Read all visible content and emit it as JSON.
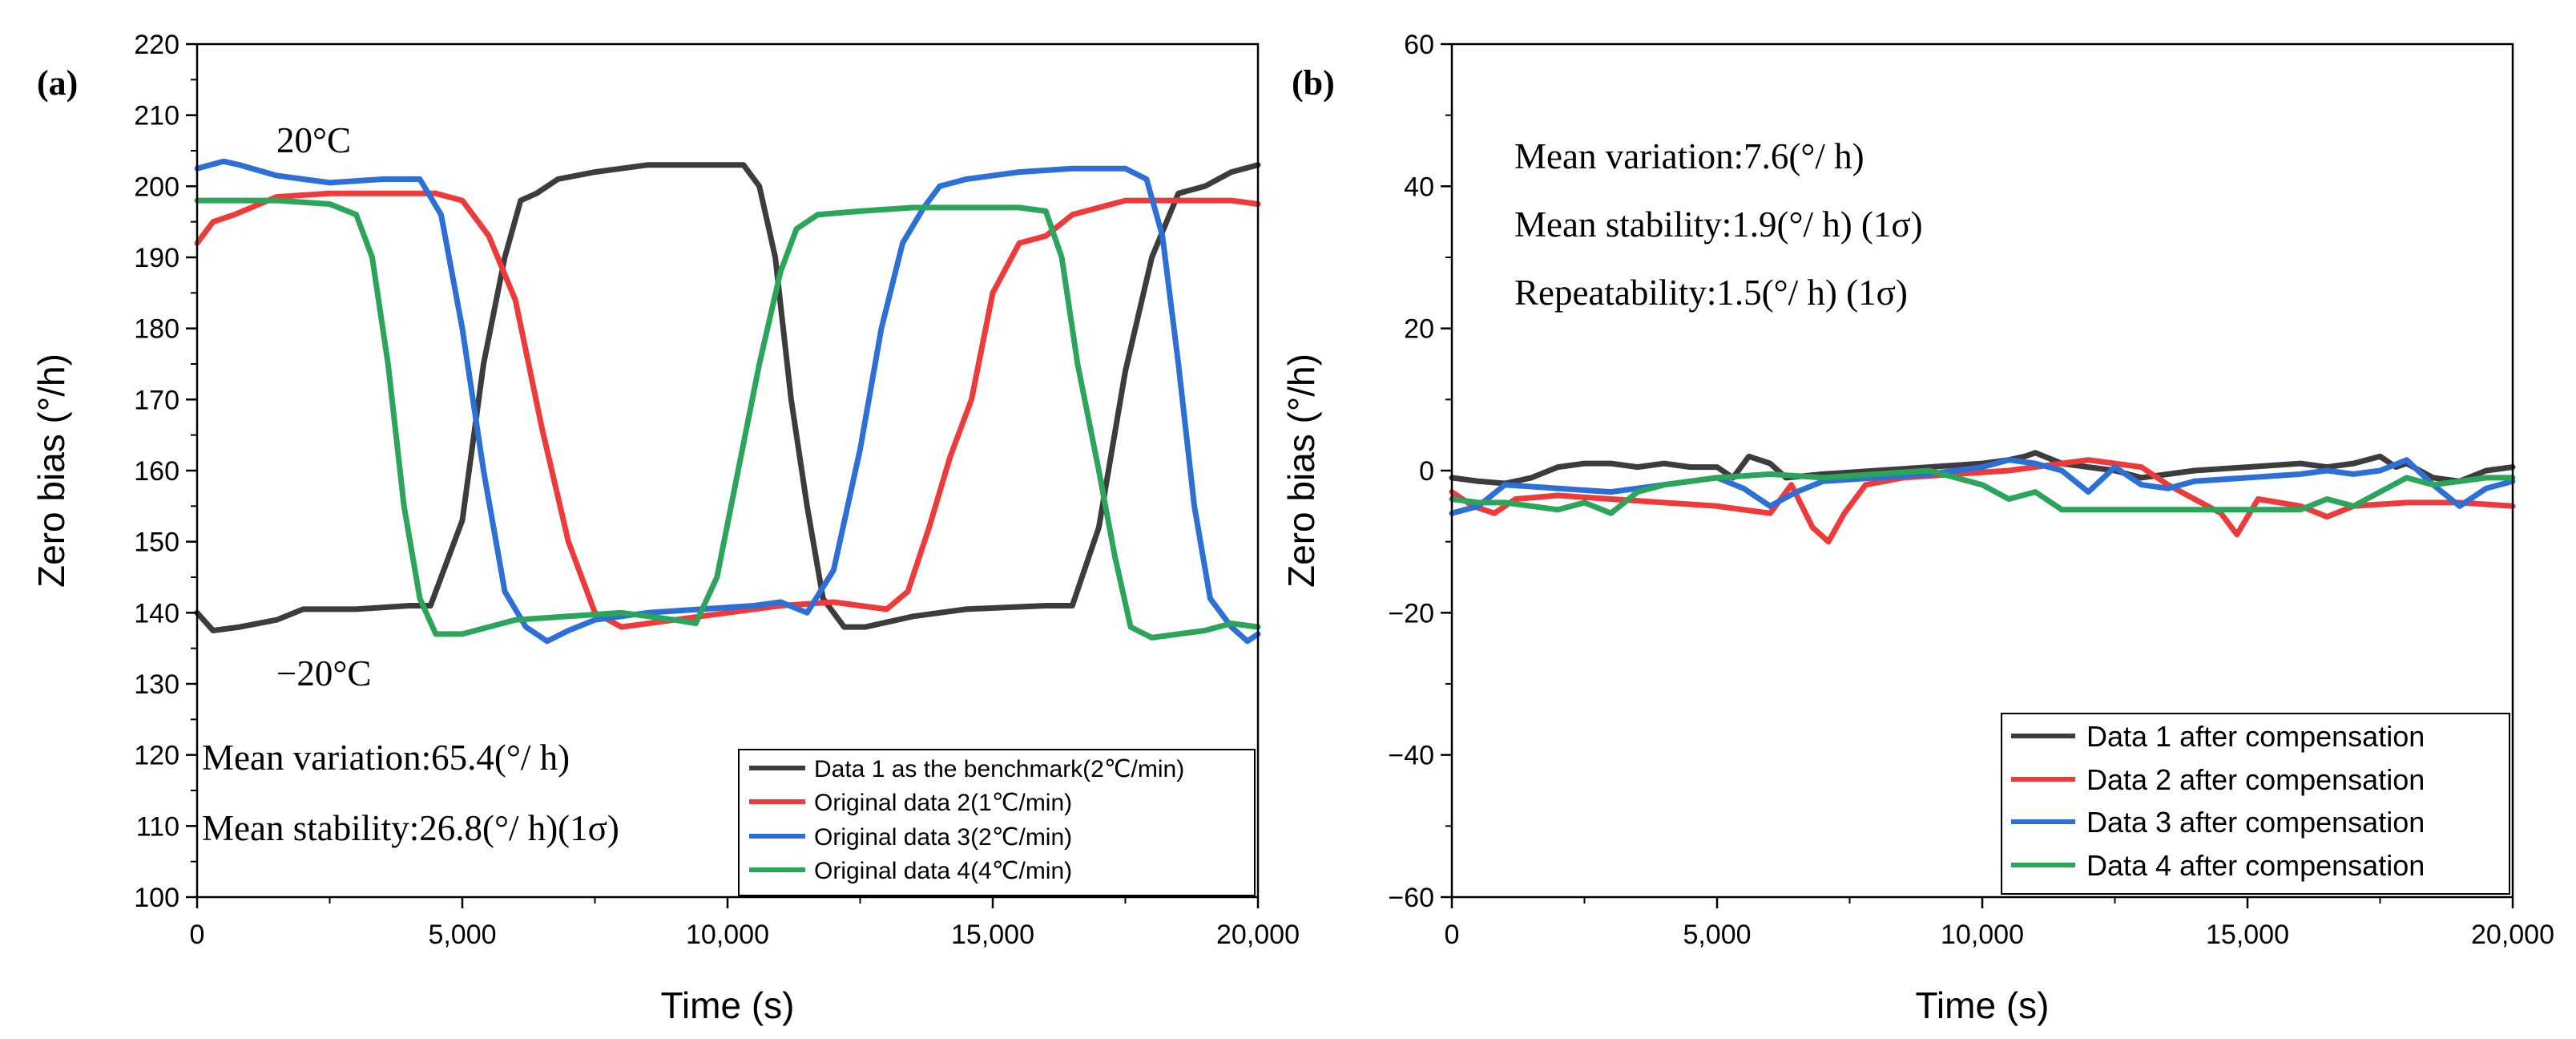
{
  "chart_data": [
    {
      "panel_label": "(a)",
      "type": "line",
      "xlabel": "Time (s)",
      "ylabel": "Zero bias (°/h)",
      "xlim": [
        0,
        20000
      ],
      "ylim": [
        100,
        220
      ],
      "x_ticks": [
        0,
        5000,
        10000,
        15000,
        20000
      ],
      "x_tick_labels": [
        "0",
        "5,000",
        "10,000",
        "15,000",
        "20,000"
      ],
      "y_ticks": [
        100,
        110,
        120,
        130,
        140,
        150,
        160,
        170,
        180,
        190,
        200,
        210,
        220
      ],
      "y_tick_labels": [
        "100",
        "110",
        "120",
        "130",
        "140",
        "150",
        "160",
        "170",
        "180",
        "190",
        "200",
        "210",
        "220"
      ],
      "annotations": [
        "20°C",
        "−20°C",
        "Mean variation:65.4(°/ h)",
        "Mean stability:26.8(°/ h)(1σ)"
      ],
      "legend_position": "bottom-right",
      "series": [
        {
          "name": "Data 1 as the benchmark(2℃/min)",
          "color": "#3c3c3c",
          "x": [
            0,
            300,
            800,
            1500,
            2000,
            3000,
            4000,
            4400,
            5000,
            5400,
            5800,
            6100,
            6400,
            6800,
            7500,
            8500,
            9500,
            10300,
            10600,
            10900,
            11200,
            11500,
            11800,
            12200,
            12600,
            13500,
            14500,
            16000,
            16500,
            17000,
            17500,
            18000,
            18500,
            19000,
            19500,
            20000
          ],
          "values": [
            140,
            137.5,
            138,
            139,
            140.5,
            140.5,
            141,
            141,
            153,
            175,
            190,
            198,
            199,
            201,
            202,
            203,
            203,
            203,
            200,
            190,
            170,
            155,
            142,
            138,
            138,
            139.5,
            140.5,
            141,
            141,
            152,
            174,
            190,
            199,
            200,
            202,
            203
          ]
        },
        {
          "name": "Original data 2(1℃/min)",
          "color": "#ee3a3a",
          "x": [
            0,
            300,
            700,
            1500,
            2500,
            3500,
            4500,
            5000,
            5500,
            6000,
            6500,
            7000,
            7500,
            8000,
            9000,
            10000,
            11000,
            12000,
            12500,
            13000,
            13400,
            13800,
            14200,
            14600,
            15000,
            15500,
            16000,
            16500,
            17500,
            18500,
            19500,
            20000
          ],
          "values": [
            192,
            195,
            196,
            198.5,
            199,
            199,
            199,
            198,
            193,
            184,
            166,
            150,
            140,
            138,
            139,
            140,
            141,
            141.5,
            141,
            140.5,
            143,
            152,
            162,
            170,
            185,
            192,
            193,
            196,
            198,
            198,
            198,
            197.5
          ]
        },
        {
          "name": "Original data 3(2℃/min)",
          "color": "#2c6fd7",
          "x": [
            0,
            500,
            800,
            1500,
            2500,
            3500,
            4200,
            4600,
            5000,
            5400,
            5800,
            6200,
            6600,
            7000,
            7500,
            8500,
            9500,
            10500,
            11000,
            11500,
            12000,
            12500,
            12900,
            13300,
            13700,
            14000,
            14500,
            15500,
            16500,
            17500,
            17900,
            18200,
            18500,
            18800,
            19100,
            19500,
            19800,
            20000
          ],
          "values": [
            202.5,
            203.5,
            203,
            201.5,
            200.5,
            201,
            201,
            196,
            180,
            160,
            143,
            138,
            136,
            137.5,
            139,
            140,
            140.5,
            141,
            141.5,
            140,
            146,
            163,
            180,
            192,
            197,
            200,
            201,
            202,
            202.5,
            202.5,
            201,
            193,
            175,
            155,
            142,
            138,
            136,
            137
          ]
        },
        {
          "name": "Original data 4(4℃/min)",
          "color": "#2aa55a",
          "x": [
            0,
            800,
            1500,
            2500,
            3000,
            3300,
            3600,
            3900,
            4200,
            4500,
            5000,
            6000,
            7000,
            8000,
            9000,
            9400,
            9800,
            10200,
            10600,
            11000,
            11300,
            11700,
            12500,
            13500,
            14500,
            15500,
            16000,
            16300,
            16600,
            17000,
            17300,
            17600,
            18000,
            18500,
            19000,
            19500,
            20000
          ],
          "values": [
            198,
            198,
            198,
            197.5,
            196,
            190,
            175,
            155,
            142,
            137,
            137,
            139,
            139.5,
            140,
            139,
            138.5,
            145,
            160,
            175,
            188,
            194,
            196,
            196.5,
            197,
            197,
            197,
            196.5,
            190,
            175,
            160,
            148,
            138,
            136.5,
            137,
            137.5,
            138.5,
            138
          ]
        }
      ]
    },
    {
      "panel_label": "(b)",
      "type": "line",
      "xlabel": "Time (s)",
      "ylabel": "Zero bias (°/h)",
      "xlim": [
        0,
        20000
      ],
      "ylim": [
        -60,
        60
      ],
      "x_ticks": [
        0,
        5000,
        10000,
        15000,
        20000
      ],
      "x_tick_labels": [
        "0",
        "5,000",
        "10,000",
        "15,000",
        "20,000"
      ],
      "y_ticks": [
        -60,
        -40,
        -20,
        0,
        20,
        40,
        60
      ],
      "y_tick_labels": [
        "−60",
        "−40",
        "−20",
        "0",
        "20",
        "40",
        "60"
      ],
      "annotations": [
        "Mean variation:7.6(°/ h)",
        "Mean stability:1.9(°/ h) (1σ)",
        "Repeatability:1.5(°/ h) (1σ)"
      ],
      "legend_position": "bottom-right",
      "series": [
        {
          "name": "Data 1 after compensation",
          "color": "#3c3c3c",
          "x": [
            0,
            500,
            1000,
            1500,
            2000,
            2500,
            3000,
            3500,
            4000,
            4500,
            5000,
            5300,
            5600,
            6000,
            6300,
            7000,
            8000,
            9000,
            10000,
            10500,
            10800,
            11000,
            11500,
            12000,
            12500,
            13000,
            14000,
            15000,
            16000,
            16500,
            17000,
            17500,
            17800,
            18000,
            18500,
            19000,
            19500,
            20000
          ],
          "values": [
            -1,
            -1.5,
            -1.8,
            -1,
            0.5,
            1,
            1,
            0.5,
            1,
            0.5,
            0.5,
            -1,
            2,
            1,
            -1,
            -0.5,
            0,
            0.5,
            1,
            1.5,
            2,
            2.5,
            1,
            0.5,
            0,
            -1,
            0,
            0.5,
            1,
            0.5,
            1,
            2,
            0.5,
            1,
            -1,
            -1.5,
            0,
            0.5
          ]
        },
        {
          "name": "Data 2 after compensation",
          "color": "#ee3a3a",
          "x": [
            0,
            400,
            800,
            1200,
            2000,
            3000,
            4000,
            5000,
            5500,
            6000,
            6400,
            6800,
            7100,
            7400,
            7800,
            8500,
            9500,
            10500,
            11500,
            12000,
            12500,
            13000,
            13500,
            14000,
            14500,
            14800,
            15200,
            16000,
            16500,
            17000,
            18000,
            19000,
            20000
          ],
          "values": [
            -3,
            -5,
            -6,
            -4,
            -3.5,
            -4,
            -4.5,
            -5,
            -5.5,
            -6,
            -2,
            -8,
            -10,
            -6,
            -2,
            -1,
            -0.5,
            0,
            1,
            1.5,
            1,
            0.5,
            -2,
            -4,
            -6,
            -9,
            -4,
            -5,
            -6.5,
            -5,
            -4.5,
            -4.5,
            -5
          ]
        },
        {
          "name": "Data 3 after compensation",
          "color": "#2c6fd7",
          "x": [
            0,
            500,
            1000,
            2000,
            3000,
            4000,
            5000,
            5500,
            6000,
            6500,
            7000,
            8000,
            9000,
            10000,
            10500,
            11000,
            11500,
            12000,
            12500,
            13000,
            13500,
            14000,
            15000,
            16000,
            16500,
            17000,
            17500,
            18000,
            18500,
            19000,
            19500,
            20000
          ],
          "values": [
            -6,
            -5,
            -2,
            -2.5,
            -3,
            -2,
            -1,
            -2.5,
            -5,
            -3,
            -1.5,
            -1,
            -0.5,
            0.5,
            1.5,
            1,
            0,
            -3,
            0.5,
            -2,
            -2.5,
            -1.5,
            -1,
            -0.5,
            0,
            -0.5,
            0,
            1.5,
            -2,
            -5,
            -2.5,
            -1.5
          ]
        },
        {
          "name": "Data 4 after compensation",
          "color": "#2aa55a",
          "x": [
            0,
            500,
            1000,
            1500,
            2000,
            2500,
            3000,
            3500,
            4000,
            4500,
            5000,
            6000,
            7000,
            8000,
            9000,
            9500,
            10000,
            10500,
            11000,
            11500,
            12000,
            13000,
            14000,
            15000,
            16000,
            16500,
            17000,
            17500,
            18000,
            18500,
            19000,
            19500,
            20000
          ],
          "values": [
            -4,
            -4.5,
            -4.5,
            -5,
            -5.5,
            -4.5,
            -6,
            -3,
            -2,
            -1.5,
            -1,
            -0.5,
            -1,
            -0.5,
            0,
            -1,
            -2,
            -4,
            -3,
            -5.5,
            -5.5,
            -5.5,
            -5.5,
            -5.5,
            -5.5,
            -4,
            -5,
            -3,
            -1,
            -2,
            -1.5,
            -1,
            -1
          ]
        }
      ]
    }
  ]
}
